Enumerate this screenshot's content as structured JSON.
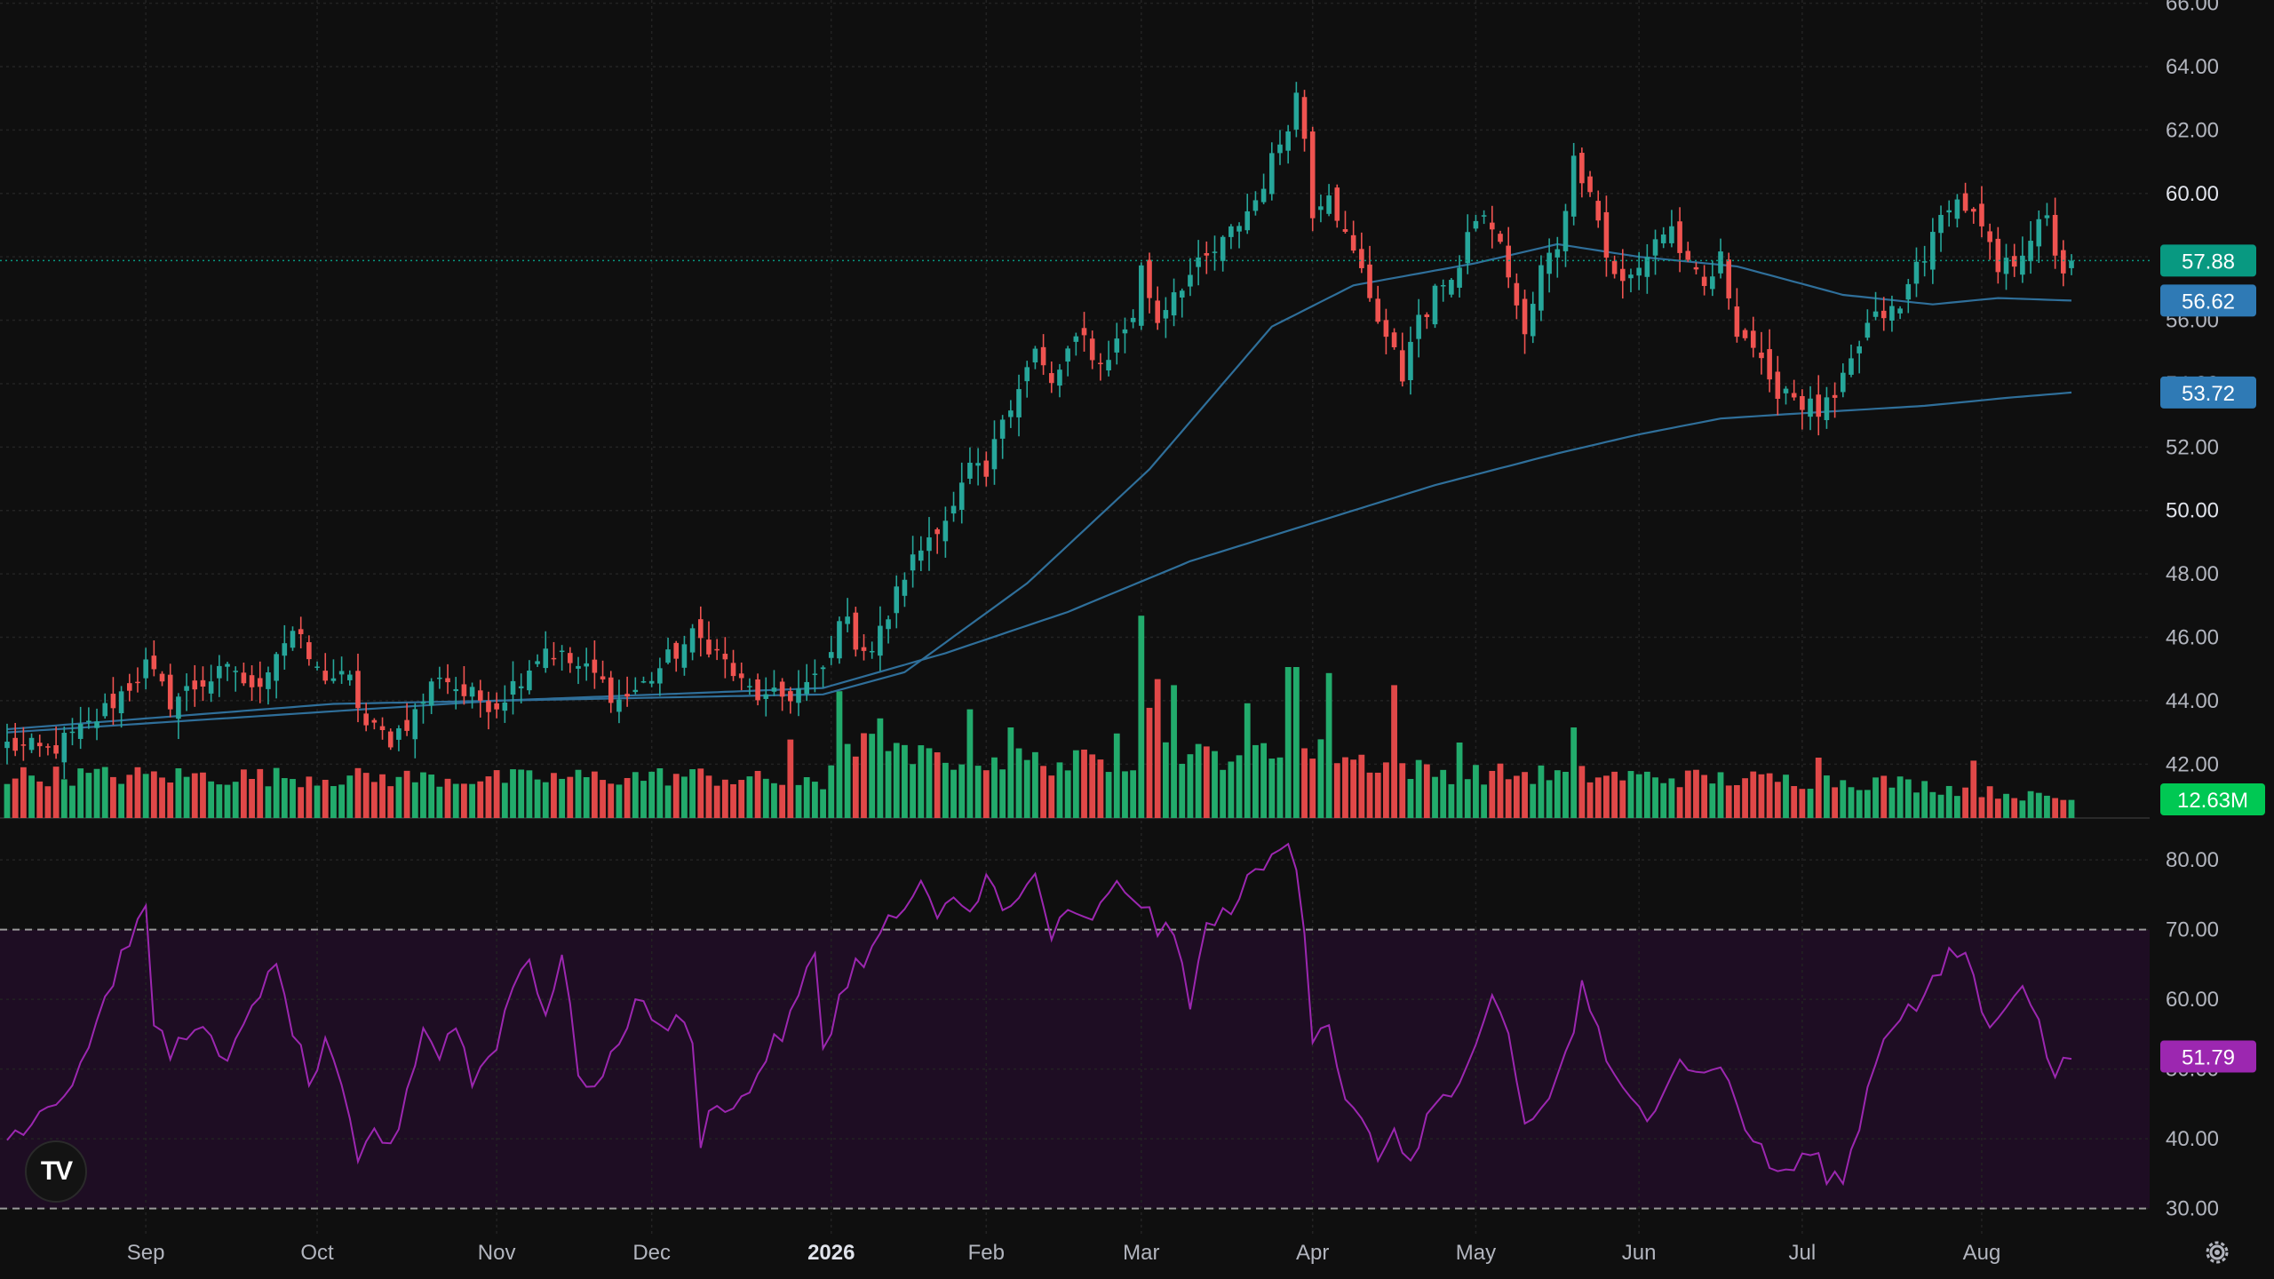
{
  "chart_data": {
    "type": "candlestick",
    "price_axis": {
      "range": [
        40.3,
        66.1
      ],
      "ticks": [
        "42.00",
        "44.00",
        "46.00",
        "48.00",
        "50.00",
        "52.00",
        "54.00",
        "56.00",
        "58.00",
        "60.00",
        "62.00",
        "64.00",
        "66.00"
      ],
      "bold_ticks": [
        "50.00",
        "60.00"
      ]
    },
    "rsi_axis": {
      "range": [
        26,
        86
      ],
      "ticks": [
        "30.00",
        "40.00",
        "50.00",
        "60.00",
        "70.00",
        "80.00"
      ],
      "band": [
        30,
        70
      ]
    },
    "x_axis_labels": [
      {
        "label": "Sep",
        "bar": 17,
        "bold": false
      },
      {
        "label": "Oct",
        "bar": 38,
        "bold": false
      },
      {
        "label": "Nov",
        "bar": 60,
        "bold": false
      },
      {
        "label": "Dec",
        "bar": 79,
        "bold": false
      },
      {
        "label": "2026",
        "bar": 101,
        "bold": true
      },
      {
        "label": "Feb",
        "bar": 120,
        "bold": false
      },
      {
        "label": "Mar",
        "bar": 139,
        "bold": false
      },
      {
        "label": "Apr",
        "bar": 160,
        "bold": false
      },
      {
        "label": "May",
        "bar": 180,
        "bold": false
      },
      {
        "label": "Jun",
        "bar": 200,
        "bold": false
      },
      {
        "label": "Jul",
        "bar": 220,
        "bold": false
      },
      {
        "label": "Aug",
        "bar": 242,
        "bold": false
      }
    ],
    "keypoints_close": [
      [
        0,
        42.6
      ],
      [
        5,
        42.4
      ],
      [
        10,
        43.2
      ],
      [
        15,
        44.5
      ],
      [
        17,
        45.1
      ],
      [
        20,
        44.0
      ],
      [
        24,
        44.6
      ],
      [
        28,
        45.0
      ],
      [
        30,
        44.2
      ],
      [
        33,
        45.6
      ],
      [
        35,
        46.2
      ],
      [
        38,
        44.9
      ],
      [
        42,
        44.6
      ],
      [
        44,
        43.2
      ],
      [
        47,
        42.8
      ],
      [
        50,
        43.6
      ],
      [
        53,
        44.9
      ],
      [
        56,
        44.2
      ],
      [
        60,
        43.9
      ],
      [
        63,
        44.8
      ],
      [
        66,
        45.7
      ],
      [
        69,
        45.2
      ],
      [
        72,
        44.8
      ],
      [
        75,
        44.0
      ],
      [
        78,
        44.5
      ],
      [
        81,
        45.3
      ],
      [
        84,
        46.0
      ],
      [
        86,
        45.8
      ],
      [
        88,
        45.2
      ],
      [
        90,
        44.5
      ],
      [
        93,
        44.0
      ],
      [
        96,
        44.2
      ],
      [
        99,
        44.6
      ],
      [
        101,
        45.4
      ],
      [
        102,
        46.8
      ],
      [
        104,
        45.9
      ],
      [
        106,
        45.6
      ],
      [
        108,
        46.7
      ],
      [
        110,
        48.0
      ],
      [
        112,
        48.8
      ],
      [
        114,
        49.6
      ],
      [
        116,
        50.0
      ],
      [
        118,
        51.3
      ],
      [
        120,
        51.0
      ],
      [
        122,
        53.0
      ],
      [
        124,
        54.0
      ],
      [
        126,
        55.0
      ],
      [
        128,
        53.9
      ],
      [
        130,
        55.0
      ],
      [
        132,
        55.4
      ],
      [
        134,
        54.6
      ],
      [
        136,
        55.3
      ],
      [
        138,
        56.2
      ],
      [
        139,
        57.6
      ],
      [
        141,
        56.0
      ],
      [
        143,
        57.0
      ],
      [
        145,
        57.4
      ],
      [
        147,
        57.9
      ],
      [
        149,
        58.4
      ],
      [
        151,
        59.1
      ],
      [
        153,
        59.8
      ],
      [
        155,
        61.0
      ],
      [
        157,
        62.3
      ],
      [
        158,
        63.1
      ],
      [
        159,
        61.8
      ],
      [
        160,
        59.5
      ],
      [
        162,
        60.2
      ],
      [
        164,
        58.6
      ],
      [
        166,
        57.5
      ],
      [
        167,
        56.8
      ],
      [
        169,
        55.5
      ],
      [
        171,
        54.2
      ],
      [
        172,
        55.6
      ],
      [
        174,
        56.2
      ],
      [
        176,
        57.3
      ],
      [
        178,
        57.6
      ],
      [
        180,
        59.3
      ],
      [
        182,
        59.0
      ],
      [
        184,
        57.5
      ],
      [
        186,
        55.4
      ],
      [
        188,
        57.6
      ],
      [
        190,
        58.4
      ],
      [
        192,
        61.0
      ],
      [
        194,
        60.3
      ],
      [
        196,
        58.0
      ],
      [
        198,
        57.1
      ],
      [
        200,
        57.6
      ],
      [
        202,
        58.6
      ],
      [
        204,
        58.9
      ],
      [
        206,
        57.6
      ],
      [
        208,
        57.0
      ],
      [
        210,
        57.9
      ],
      [
        212,
        55.8
      ],
      [
        214,
        55.2
      ],
      [
        216,
        53.8
      ],
      [
        218,
        53.9
      ],
      [
        220,
        53.4
      ],
      [
        222,
        53.1
      ],
      [
        224,
        53.4
      ],
      [
        226,
        54.6
      ],
      [
        228,
        55.8
      ],
      [
        230,
        56.2
      ],
      [
        232,
        56.3
      ],
      [
        234,
        57.8
      ],
      [
        236,
        58.5
      ],
      [
        238,
        59.8
      ],
      [
        240,
        59.6
      ],
      [
        242,
        58.8
      ],
      [
        244,
        57.5
      ],
      [
        246,
        57.9
      ],
      [
        248,
        58.7
      ],
      [
        250,
        59.1
      ],
      [
        251,
        58.2
      ],
      [
        252,
        57.6
      ],
      [
        253,
        57.88
      ]
    ],
    "ma_50_keypoints": [
      [
        0,
        43.1
      ],
      [
        40,
        43.9
      ],
      [
        100,
        44.2
      ],
      [
        110,
        44.9
      ],
      [
        125,
        47.7
      ],
      [
        140,
        51.3
      ],
      [
        155,
        55.8
      ],
      [
        165,
        57.1
      ],
      [
        180,
        57.8
      ],
      [
        190,
        58.4
      ],
      [
        200,
        58.0
      ],
      [
        212,
        57.7
      ],
      [
        225,
        56.8
      ],
      [
        236,
        56.5
      ],
      [
        244,
        56.7
      ],
      [
        253,
        56.62
      ]
    ],
    "ma_200_keypoints": [
      [
        0,
        43.0
      ],
      [
        60,
        44.0
      ],
      [
        100,
        44.4
      ],
      [
        115,
        45.5
      ],
      [
        130,
        46.8
      ],
      [
        145,
        48.4
      ],
      [
        160,
        49.6
      ],
      [
        175,
        50.8
      ],
      [
        190,
        51.8
      ],
      [
        200,
        52.4
      ],
      [
        210,
        52.9
      ],
      [
        222,
        53.1
      ],
      [
        235,
        53.3
      ],
      [
        245,
        53.55
      ],
      [
        253,
        53.72
      ]
    ],
    "rsi_keypoints": [
      [
        0,
        40
      ],
      [
        4,
        44
      ],
      [
        8,
        48
      ],
      [
        12,
        60
      ],
      [
        15,
        69
      ],
      [
        17,
        72
      ],
      [
        18,
        57
      ],
      [
        20,
        52
      ],
      [
        23,
        57
      ],
      [
        27,
        50
      ],
      [
        30,
        60
      ],
      [
        33,
        64
      ],
      [
        35,
        56
      ],
      [
        37,
        48
      ],
      [
        39,
        53
      ],
      [
        41,
        47
      ],
      [
        43,
        36
      ],
      [
        45,
        42
      ],
      [
        47,
        38
      ],
      [
        49,
        47
      ],
      [
        51,
        56
      ],
      [
        53,
        52
      ],
      [
        55,
        57
      ],
      [
        57,
        48
      ],
      [
        60,
        54
      ],
      [
        62,
        62
      ],
      [
        64,
        66
      ],
      [
        66,
        58
      ],
      [
        68,
        66
      ],
      [
        70,
        50
      ],
      [
        72,
        47
      ],
      [
        74,
        51
      ],
      [
        76,
        57
      ],
      [
        78,
        61
      ],
      [
        80,
        55
      ],
      [
        82,
        58
      ],
      [
        84,
        53
      ],
      [
        85,
        40
      ],
      [
        87,
        46
      ],
      [
        89,
        44
      ],
      [
        91,
        47
      ],
      [
        93,
        52
      ],
      [
        95,
        55
      ],
      [
        97,
        60
      ],
      [
        99,
        67
      ],
      [
        100,
        53
      ],
      [
        102,
        60
      ],
      [
        104,
        65
      ],
      [
        106,
        67
      ],
      [
        108,
        71
      ],
      [
        110,
        73
      ],
      [
        112,
        76
      ],
      [
        114,
        71
      ],
      [
        116,
        75
      ],
      [
        118,
        72
      ],
      [
        120,
        79
      ],
      [
        122,
        72
      ],
      [
        124,
        74
      ],
      [
        126,
        78
      ],
      [
        128,
        69
      ],
      [
        130,
        72
      ],
      [
        132,
        71
      ],
      [
        134,
        73
      ],
      [
        136,
        76
      ],
      [
        138,
        75
      ],
      [
        139,
        74
      ],
      [
        141,
        70
      ],
      [
        143,
        69
      ],
      [
        145,
        60
      ],
      [
        147,
        70
      ],
      [
        149,
        72
      ],
      [
        151,
        75
      ],
      [
        153,
        78
      ],
      [
        155,
        80
      ],
      [
        157,
        83
      ],
      [
        158,
        80
      ],
      [
        159,
        70
      ],
      [
        160,
        55
      ],
      [
        162,
        57
      ],
      [
        164,
        45
      ],
      [
        166,
        42
      ],
      [
        168,
        38
      ],
      [
        170,
        40
      ],
      [
        172,
        37
      ],
      [
        174,
        43
      ],
      [
        176,
        46
      ],
      [
        178,
        47
      ],
      [
        180,
        52
      ],
      [
        182,
        60
      ],
      [
        184,
        55
      ],
      [
        186,
        42
      ],
      [
        188,
        44
      ],
      [
        190,
        49
      ],
      [
        192,
        55
      ],
      [
        193,
        63
      ],
      [
        195,
        55
      ],
      [
        197,
        48
      ],
      [
        199,
        45
      ],
      [
        201,
        43
      ],
      [
        203,
        48
      ],
      [
        205,
        52
      ],
      [
        207,
        49
      ],
      [
        209,
        51
      ],
      [
        211,
        48
      ],
      [
        213,
        42
      ],
      [
        215,
        38
      ],
      [
        217,
        35
      ],
      [
        219,
        36
      ],
      [
        221,
        38
      ],
      [
        223,
        35
      ],
      [
        225,
        34
      ],
      [
        226,
        38
      ],
      [
        228,
        47
      ],
      [
        230,
        55
      ],
      [
        232,
        58
      ],
      [
        234,
        59
      ],
      [
        236,
        62
      ],
      [
        238,
        66
      ],
      [
        240,
        67
      ],
      [
        241,
        63
      ],
      [
        243,
        55
      ],
      [
        245,
        60
      ],
      [
        247,
        63
      ],
      [
        249,
        56
      ],
      [
        251,
        49
      ],
      [
        253,
        52
      ]
    ],
    "volume_keypoints": [
      [
        0,
        0.14
      ],
      [
        20,
        0.14
      ],
      [
        60,
        0.13
      ],
      [
        84,
        0.14
      ],
      [
        96,
        0.12
      ],
      [
        100,
        0.1
      ],
      [
        102,
        0.26
      ],
      [
        110,
        0.2
      ],
      [
        120,
        0.2
      ],
      [
        130,
        0.18
      ],
      [
        138,
        0.2
      ],
      [
        140,
        0.38
      ],
      [
        145,
        0.2
      ],
      [
        152,
        0.22
      ],
      [
        160,
        0.22
      ],
      [
        175,
        0.15
      ],
      [
        195,
        0.14
      ],
      [
        210,
        0.13
      ],
      [
        230,
        0.12
      ],
      [
        253,
        0.06
      ]
    ],
    "volume_spikes": [
      [
        96,
        0.26
      ],
      [
        102,
        0.42
      ],
      [
        107,
        0.33
      ],
      [
        118,
        0.36
      ],
      [
        123,
        0.3
      ],
      [
        136,
        0.28
      ],
      [
        139,
        0.67
      ],
      [
        141,
        0.46
      ],
      [
        143,
        0.44
      ],
      [
        152,
        0.38
      ],
      [
        157,
        0.5
      ],
      [
        158,
        0.5
      ],
      [
        162,
        0.48
      ],
      [
        170,
        0.44
      ],
      [
        178,
        0.25
      ],
      [
        192,
        0.3
      ],
      [
        222,
        0.2
      ],
      [
        241,
        0.19
      ]
    ],
    "last_values": {
      "close": "57.88",
      "ma50": "56.62",
      "ma200": "53.72",
      "volume": "12.63M",
      "rsi": "51.79"
    },
    "bar_count": 254
  },
  "colors": {
    "up": "#26a69a",
    "down": "#ef5350",
    "ma": "#2f6f9a",
    "ma_tag": "#2f7ab5",
    "close_tag": "#089981",
    "volume_tag": "#00c853",
    "rsi_line": "#9c27b0",
    "rsi_tag": "#9c27b0",
    "rsi_band": "#1e0d23",
    "grid": "#232323",
    "background": "#0f0f0f"
  },
  "logo_text": "TV",
  "icons": [
    "tradingview-logo-icon",
    "settings-gear-icon"
  ]
}
